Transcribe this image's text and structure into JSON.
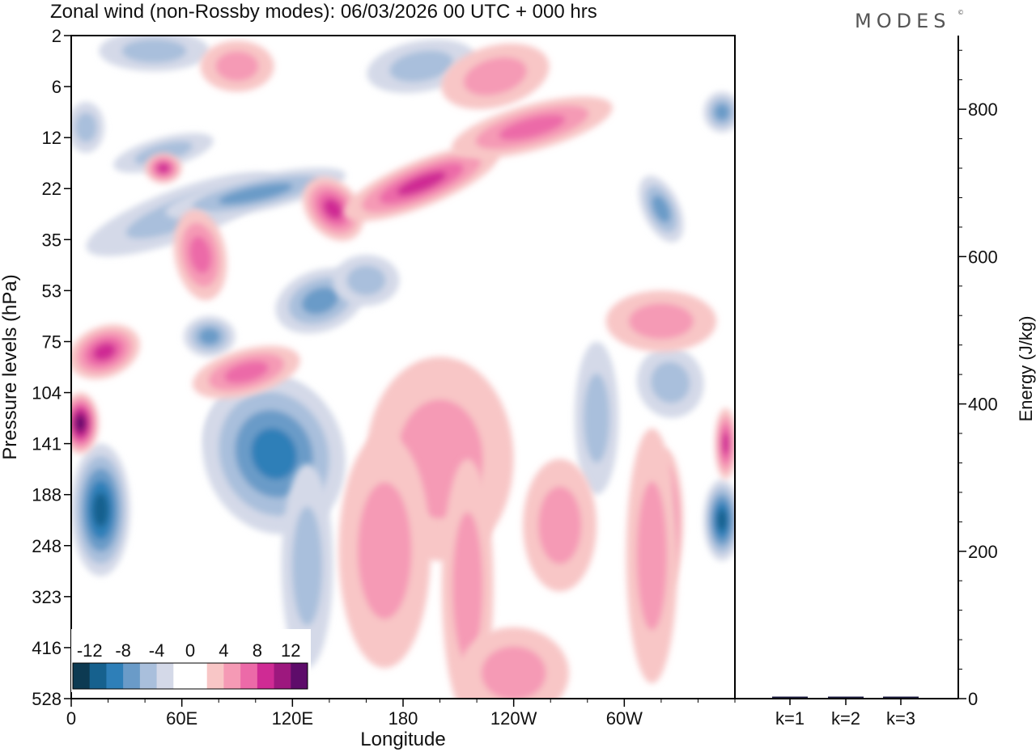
{
  "chart_data": {
    "type": "heatmap",
    "title": "Zonal wind (non-Rossby modes):  06/03/2026  00 UTC  + 000 hrs",
    "logo": "MODES",
    "logo_mark": "©",
    "xlabel": "Longitude",
    "ylabel": "Pressure levels (hPa)",
    "x_ticks": [
      "0",
      "60E",
      "120E",
      "180",
      "120W",
      "60W"
    ],
    "x_range_deg": [
      0,
      360
    ],
    "y_levels": [
      "2",
      "6",
      "12",
      "22",
      "35",
      "53",
      "75",
      "104",
      "141",
      "188",
      "248",
      "323",
      "416",
      "528"
    ],
    "colorbar": {
      "labels": [
        "-12",
        "-8",
        "-4",
        "0",
        "4",
        "8",
        "12"
      ],
      "colors": [
        "#0d3a52",
        "#16618e",
        "#2e7fb8",
        "#6a9bc8",
        "#a9bfdc",
        "#d4d9e8",
        "#ffffff",
        "#ffffff",
        "#f8c6c6",
        "#f59ab5",
        "#ec6aa8",
        "#cf2b94",
        "#9d187e",
        "#5e0c6a"
      ]
    },
    "blobs": [
      {
        "lon": 100,
        "lev": 7.8,
        "w": 28,
        "h": 0.9,
        "v": -14,
        "rot": -22
      },
      {
        "lon": 122,
        "lev": 7.6,
        "w": 16,
        "h": 0.85,
        "v": -13,
        "rot": -35
      },
      {
        "lon": 110,
        "lev": 8.2,
        "w": 38,
        "h": 1.6,
        "v": -8,
        "rot": -20
      },
      {
        "lon": 16,
        "lev": 9.3,
        "w": 16,
        "h": 1.3,
        "v": -9,
        "rot": 0
      },
      {
        "lon": 135,
        "lev": 5.2,
        "w": 25,
        "h": 0.6,
        "v": -5,
        "rot": -20
      },
      {
        "lon": 160,
        "lev": 4.8,
        "w": 18,
        "h": 0.5,
        "v": -4,
        "rot": 0
      },
      {
        "lon": 60,
        "lev": 3.5,
        "w": 55,
        "h": 0.5,
        "v": -4,
        "rot": -20
      },
      {
        "lon": 50,
        "lev": 2.3,
        "w": 28,
        "h": 0.3,
        "v": -4,
        "rot": -15
      },
      {
        "lon": 100,
        "lev": 3.1,
        "w": 50,
        "h": 0.35,
        "v": -5,
        "rot": -12
      },
      {
        "lon": 45,
        "lev": 0.3,
        "w": 30,
        "h": 0.4,
        "v": -4,
        "rot": 0
      },
      {
        "lon": 190,
        "lev": 0.6,
        "w": 30,
        "h": 0.5,
        "v": -3,
        "rot": -10
      },
      {
        "lon": 325,
        "lev": 6.8,
        "w": 18,
        "h": 0.7,
        "v": -4,
        "rot": -20
      },
      {
        "lon": 285,
        "lev": 7.5,
        "w": 12,
        "h": 1.5,
        "v": -4,
        "rot": 0
      },
      {
        "lon": 353,
        "lev": 9.5,
        "w": 10,
        "h": 0.8,
        "v": -10,
        "rot": 0
      },
      {
        "lon": 353,
        "lev": 1.5,
        "w": 10,
        "h": 0.4,
        "v": -6,
        "rot": 0
      },
      {
        "lon": 320,
        "lev": 3.4,
        "w": 10,
        "h": 0.7,
        "v": -5,
        "rot": -25
      },
      {
        "lon": 128,
        "lev": 10.4,
        "w": 14,
        "h": 2.0,
        "v": -3,
        "rot": 0
      },
      {
        "lon": 75,
        "lev": 5.9,
        "w": 14,
        "h": 0.4,
        "v": -6,
        "rot": 0
      },
      {
        "lon": 8,
        "lev": 1.8,
        "w": 10,
        "h": 0.5,
        "v": -4,
        "rot": 0
      },
      {
        "lon": 5,
        "lev": 7.6,
        "w": 10,
        "h": 0.6,
        "v": 13,
        "rot": 0
      },
      {
        "lon": 18,
        "lev": 6.2,
        "w": 20,
        "h": 0.5,
        "v": 8,
        "rot": -22
      },
      {
        "lon": 70,
        "lev": 4.3,
        "w": 14,
        "h": 0.9,
        "v": 5,
        "rot": -10
      },
      {
        "lon": 95,
        "lev": 6.6,
        "w": 30,
        "h": 0.45,
        "v": 6,
        "rot": -15
      },
      {
        "lon": 142,
        "lev": 3.4,
        "w": 14,
        "h": 0.7,
        "v": 7,
        "rot": -40
      },
      {
        "lon": 190,
        "lev": 2.9,
        "w": 45,
        "h": 0.45,
        "v": 8,
        "rot": -22
      },
      {
        "lon": 250,
        "lev": 1.8,
        "w": 45,
        "h": 0.45,
        "v": 5,
        "rot": -15
      },
      {
        "lon": 50,
        "lev": 2.6,
        "w": 10,
        "h": 0.3,
        "v": 7,
        "rot": 0
      },
      {
        "lon": 190,
        "lev": 7.7,
        "w": 10,
        "h": 1.2,
        "v": 9,
        "rot": 0
      },
      {
        "lon": 210,
        "lev": 7.8,
        "w": 14,
        "h": 1.3,
        "v": 8,
        "rot": 0
      },
      {
        "lon": 200,
        "lev": 8.3,
        "w": 40,
        "h": 2.0,
        "v": 4,
        "rot": 0
      },
      {
        "lon": 165,
        "lev": 9.8,
        "w": 12,
        "h": 1.6,
        "v": 8,
        "rot": 0
      },
      {
        "lon": 170,
        "lev": 10.1,
        "w": 25,
        "h": 2.3,
        "v": 4,
        "rot": 0
      },
      {
        "lon": 215,
        "lev": 10.8,
        "w": 14,
        "h": 2.5,
        "v": 3,
        "rot": 0
      },
      {
        "lon": 265,
        "lev": 9.6,
        "w": 20,
        "h": 1.3,
        "v": 4,
        "rot": 0
      },
      {
        "lon": 322,
        "lev": 9.5,
        "w": 10,
        "h": 1.4,
        "v": 7,
        "rot": 0
      },
      {
        "lon": 315,
        "lev": 10.2,
        "w": 14,
        "h": 2.5,
        "v": 3,
        "rot": 0
      },
      {
        "lon": 320,
        "lev": 5.6,
        "w": 30,
        "h": 0.6,
        "v": 4,
        "rot": 0
      },
      {
        "lon": 230,
        "lev": 0.8,
        "w": 30,
        "h": 0.6,
        "v": 3,
        "rot": -15
      },
      {
        "lon": 90,
        "lev": 0.6,
        "w": 20,
        "h": 0.5,
        "v": 3,
        "rot": 0
      },
      {
        "lon": 355,
        "lev": 8.0,
        "w": 6,
        "h": 0.7,
        "v": 8,
        "rot": 0
      },
      {
        "lon": 240,
        "lev": 12.5,
        "w": 30,
        "h": 0.9,
        "v": 3,
        "rot": 0
      }
    ],
    "right_panel": {
      "ylabel": "Energy (J/kg)",
      "ylim": [
        0,
        900
      ],
      "y_ticks": [
        0,
        200,
        400,
        600,
        800
      ],
      "categories": [
        "k=1",
        "k=2",
        "k=3"
      ],
      "values": [
        1.5,
        1.0,
        1.0
      ]
    }
  }
}
